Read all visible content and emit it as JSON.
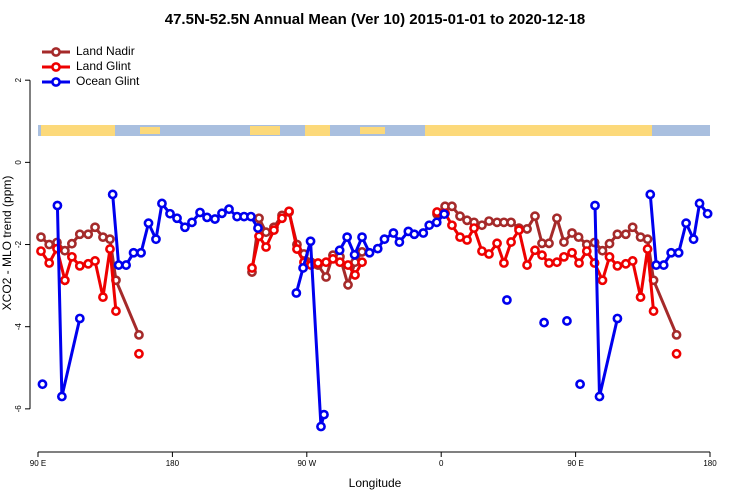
{
  "chart_data": {
    "type": "line",
    "title": "47.5N-52.5N Annual Mean (Ver 10)   2015-01-01 to 2020-12-18",
    "x_label": "Longitude",
    "y_label": "XCO2 - MLO trend (ppm)",
    "xlim": [
      90,
      540
    ],
    "ylim": [
      -7.05,
      3.1
    ],
    "xticks": [
      {
        "value": 90,
        "label": "90 E"
      },
      180,
      {
        "value": 270,
        "label": "90 W"
      },
      {
        "value": 360,
        "label": "0"
      },
      {
        "value": 450,
        "label": "90 E"
      },
      {
        "value": 540,
        "label": "180"
      }
    ],
    "yticks": [
      -6,
      -4,
      -2,
      0,
      2
    ],
    "legend": "top-left",
    "series": [
      {
        "name": "Land Nadir",
        "color": "#a52a2a",
        "x": [
          92,
          97.5,
          102.7,
          108,
          112.7,
          118,
          123.6,
          128.2,
          133.5,
          138.2,
          142.2,
          157.6,
          null,
          233.3,
          238,
          242.7,
          248,
          253.4,
          258.1,
          263.4,
          268.1,
          272.8,
          277.5,
          282.9,
          287.5,
          292.2,
          297.6,
          302.3,
          307,
          null,
          357.2,
          362.6,
          367.2,
          372.6,
          377.3,
          382,
          387.3,
          392,
          397.4,
          402,
          406.8,
          412.1,
          417.5,
          422.8,
          427.5,
          432.2,
          437.5,
          442.2,
          447.6,
          452,
          457.5,
          462.7,
          468,
          472.7,
          478,
          483.6,
          488.2,
          493.5,
          498.2,
          502.2,
          517.6
        ],
        "values": [
          -1.82,
          -2.0,
          -1.95,
          -2.15,
          -1.98,
          -1.75,
          -1.75,
          -1.58,
          -1.82,
          -1.87,
          -2.87,
          -4.2,
          null,
          -2.67,
          -1.36,
          -1.7,
          -1.58,
          -1.29,
          -1.21,
          -2.0,
          -2.23,
          -2.43,
          -2.5,
          -2.79,
          -2.26,
          -2.3,
          -2.98,
          -2.43,
          -2.18,
          null,
          -1.26,
          -1.07,
          -1.07,
          -1.31,
          -1.41,
          -1.46,
          -1.53,
          -1.43,
          -1.46,
          -1.46,
          -1.46,
          -1.6,
          -1.62,
          -1.31,
          -1.97,
          -1.97,
          -1.36,
          -1.94,
          -1.72,
          -1.82,
          -2.0,
          -1.95,
          -2.15,
          -1.98,
          -1.75,
          -1.75,
          -1.58,
          -1.82,
          -1.87,
          -2.87,
          -4.2
        ]
      },
      {
        "name": "Land Glint",
        "color": "#ee0000",
        "x": [
          92,
          97.5,
          102.7,
          108,
          112.7,
          118,
          123.6,
          128.2,
          133.5,
          138.2,
          142.2,
          null,
          157.6,
          null,
          233.3,
          238,
          242.7,
          248,
          253.4,
          258.1,
          263.4,
          268.1,
          272.8,
          277.5,
          282.9,
          287.5,
          292.2,
          297.6,
          302.3,
          307,
          null,
          357.2,
          362.6,
          367.2,
          372.6,
          377.3,
          382,
          387.3,
          392,
          397.4,
          402,
          406.8,
          412.1,
          417.5,
          422.8,
          427.5,
          432.2,
          437.5,
          442.2,
          447.6,
          452.3,
          457.5,
          462.7,
          468,
          472.7,
          478,
          483.6,
          488.2,
          493.5,
          498.2,
          502.2,
          null,
          517.6
        ],
        "values": [
          -2.16,
          -2.45,
          -2.1,
          -2.87,
          -2.3,
          -2.52,
          -2.47,
          -2.4,
          -3.28,
          -2.11,
          -3.62,
          null,
          -4.66,
          null,
          -2.57,
          -1.8,
          -2.06,
          -1.65,
          -1.36,
          -1.19,
          -2.11,
          -2.43,
          -2.5,
          -2.45,
          -2.43,
          -2.35,
          -2.43,
          -2.5,
          -2.74,
          -2.43,
          null,
          -1.21,
          -1.24,
          -1.53,
          -1.82,
          -1.89,
          -1.6,
          -2.16,
          -2.23,
          -1.97,
          -2.45,
          -1.94,
          -1.65,
          -2.5,
          -2.14,
          -2.26,
          -2.45,
          -2.43,
          -2.3,
          -2.2,
          -2.45,
          -2.16,
          -2.45,
          -2.87,
          -2.3,
          -2.52,
          -2.47,
          -2.4,
          -3.28,
          -2.11,
          -3.62,
          null,
          -4.66
        ]
      },
      {
        "name": "Ocean Glint",
        "color": "#0000ee",
        "x": [
          93,
          null,
          103,
          106,
          118,
          null,
          140,
          144,
          149,
          154,
          159,
          164,
          169,
          173,
          178.4,
          183.1,
          188.4,
          193.1,
          198.5,
          203.2,
          208.5,
          213.2,
          217.9,
          223.3,
          228,
          232.6,
          237.3,
          null,
          263,
          267.5,
          272.5,
          279.5,
          281.5,
          null,
          292,
          297,
          302,
          307,
          312,
          317.5,
          322,
          328,
          332,
          338,
          342,
          348,
          352,
          357,
          362,
          null,
          404,
          null,
          428.9,
          null,
          444.2,
          null,
          453,
          null,
          463,
          466,
          478,
          null,
          500,
          504,
          509,
          514,
          519,
          524,
          529,
          533,
          538.4
        ],
        "values": [
          -5.4,
          null,
          -1.05,
          -5.7,
          -3.8,
          null,
          -0.78,
          -2.5,
          -2.5,
          -2.2,
          -2.2,
          -1.48,
          -1.87,
          -1.0,
          -1.25,
          -1.36,
          -1.58,
          -1.46,
          -1.22,
          -1.34,
          -1.38,
          -1.24,
          -1.14,
          -1.32,
          -1.32,
          -1.32,
          -1.6,
          null,
          -3.18,
          -2.57,
          -1.92,
          -6.43,
          -6.14,
          null,
          -2.14,
          -1.82,
          -2.25,
          -1.82,
          -2.2,
          -2.1,
          -1.87,
          -1.72,
          -1.94,
          -1.68,
          -1.75,
          -1.72,
          -1.53,
          -1.46,
          -1.26,
          null,
          -3.35,
          null,
          -3.9,
          null,
          -3.86,
          null,
          -5.4,
          null,
          -1.05,
          -5.7,
          -3.8,
          null,
          -0.78,
          -2.5,
          -2.5,
          -2.2,
          -2.2,
          -1.48,
          -1.87,
          -1.0,
          -1.25
        ]
      }
    ]
  }
}
